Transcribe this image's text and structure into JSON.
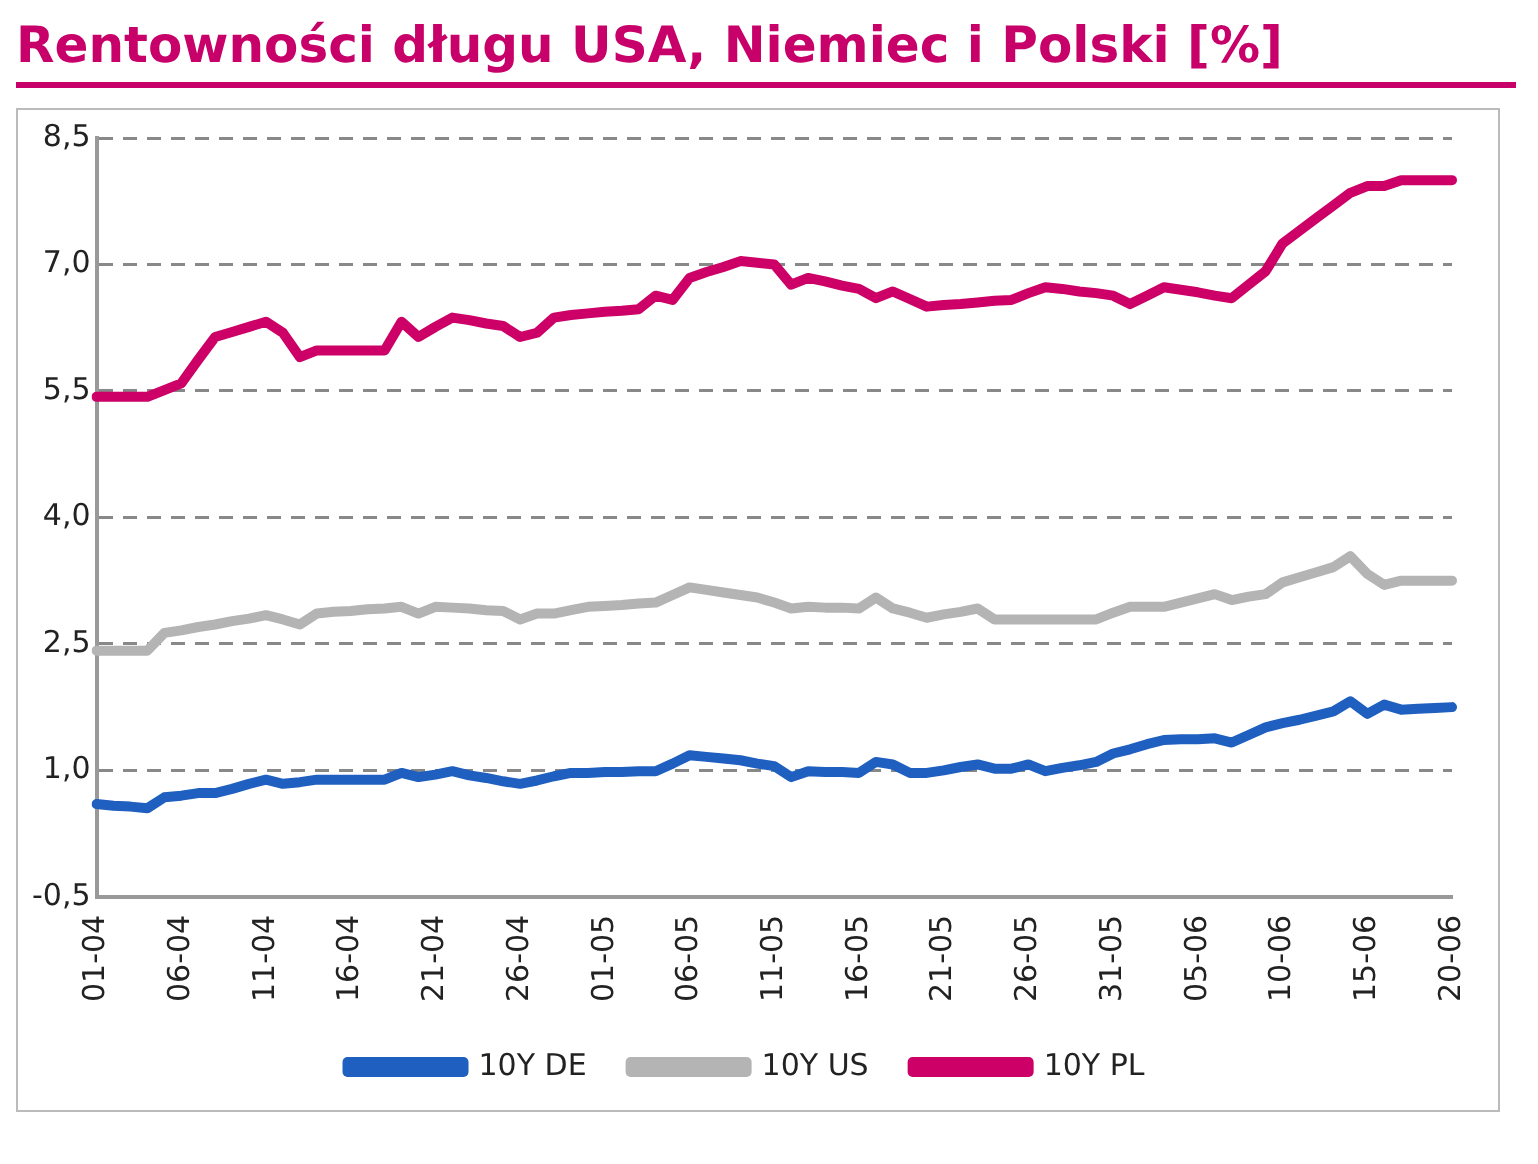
{
  "chart_data": {
    "type": "line",
    "title": "Rentowności długu USA, Niemiec i Polski [%]",
    "categories": [
      "01-04",
      null,
      null,
      null,
      null,
      "06-04",
      null,
      null,
      null,
      null,
      "11-04",
      null,
      null,
      null,
      null,
      "16-04",
      null,
      null,
      null,
      null,
      "21-04",
      null,
      null,
      null,
      null,
      "26-04",
      null,
      null,
      null,
      null,
      "01-05",
      null,
      null,
      null,
      null,
      "06-05",
      null,
      null,
      null,
      null,
      "11-05",
      null,
      null,
      null,
      null,
      "16-05",
      null,
      null,
      null,
      null,
      "21-05",
      null,
      null,
      null,
      null,
      "26-05",
      null,
      null,
      null,
      null,
      "31-05",
      null,
      null,
      null,
      null,
      "05-06",
      null,
      null,
      null,
      null,
      "10-06",
      null,
      null,
      null,
      null,
      "15-06",
      null,
      null,
      null,
      null,
      "20-06"
    ],
    "series": [
      {
        "name": "10Y DE",
        "color": "#1f5fbf",
        "values": [
          0.6,
          0.58,
          0.57,
          0.55,
          0.68,
          0.7,
          0.73,
          0.73,
          0.78,
          0.84,
          0.89,
          0.84,
          0.86,
          0.89,
          0.89,
          0.89,
          0.89,
          0.89,
          0.97,
          0.92,
          0.95,
          0.99,
          0.94,
          0.91,
          0.87,
          0.84,
          0.88,
          0.93,
          0.97,
          0.97,
          0.98,
          0.98,
          0.99,
          0.99,
          1.08,
          1.18,
          1.16,
          1.14,
          1.12,
          1.08,
          1.05,
          0.92,
          0.99,
          0.98,
          0.98,
          0.97,
          1.1,
          1.07,
          0.97,
          0.97,
          1.0,
          1.04,
          1.07,
          1.02,
          1.02,
          1.07,
          0.99,
          1.03,
          1.06,
          1.1,
          1.2,
          1.25,
          1.31,
          1.36,
          1.37,
          1.37,
          1.38,
          1.33,
          1.42,
          1.51,
          1.56,
          1.6,
          1.65,
          1.7,
          1.82,
          1.67,
          1.78,
          1.72,
          1.73,
          1.74,
          1.75
        ]
      },
      {
        "name": "10Y US",
        "color": "#b4b4b4",
        "values": [
          2.42,
          2.42,
          2.42,
          2.42,
          2.63,
          2.66,
          2.7,
          2.73,
          2.77,
          2.8,
          2.84,
          2.79,
          2.73,
          2.86,
          2.88,
          2.89,
          2.91,
          2.92,
          2.94,
          2.86,
          2.94,
          2.93,
          2.92,
          2.9,
          2.89,
          2.79,
          2.86,
          2.86,
          2.9,
          2.94,
          2.95,
          2.96,
          2.98,
          2.99,
          3.08,
          3.17,
          3.14,
          3.11,
          3.08,
          3.05,
          2.99,
          2.92,
          2.94,
          2.93,
          2.93,
          2.92,
          3.05,
          2.92,
          2.87,
          2.81,
          2.85,
          2.88,
          2.92,
          2.79,
          2.79,
          2.79,
          2.79,
          2.79,
          2.79,
          2.79,
          2.87,
          2.94,
          2.94,
          2.94,
          2.99,
          3.04,
          3.09,
          3.02,
          3.06,
          3.09,
          3.23,
          3.29,
          3.35,
          3.41,
          3.54,
          3.33,
          3.2,
          3.25,
          3.25,
          3.25,
          3.25
        ]
      },
      {
        "name": "10Y PL",
        "color": "#cc0066",
        "values": [
          5.43,
          5.43,
          5.43,
          5.43,
          5.51,
          5.59,
          5.87,
          6.14,
          6.2,
          6.26,
          6.32,
          6.19,
          5.9,
          5.98,
          5.98,
          5.98,
          5.98,
          5.98,
          6.32,
          6.14,
          6.26,
          6.37,
          6.34,
          6.3,
          6.27,
          6.14,
          6.19,
          6.37,
          6.4,
          6.42,
          6.44,
          6.45,
          6.47,
          6.63,
          6.58,
          6.84,
          6.91,
          6.97,
          7.04,
          7.02,
          7.0,
          6.76,
          6.84,
          6.8,
          6.75,
          6.71,
          6.6,
          6.68,
          6.59,
          6.5,
          6.52,
          6.53,
          6.55,
          6.57,
          6.58,
          6.66,
          6.73,
          6.71,
          6.68,
          6.66,
          6.63,
          6.53,
          6.63,
          6.73,
          6.7,
          6.67,
          6.63,
          6.6,
          6.76,
          6.92,
          7.25,
          7.4,
          7.55,
          7.7,
          7.85,
          7.93,
          7.93,
          8.0,
          8.0,
          8.0,
          8.0
        ]
      }
    ],
    "ylim": [
      -0.5,
      8.5
    ],
    "yticks": [
      {
        "value": -0.5,
        "label": "-0,5"
      },
      {
        "value": 1,
        "label": "1,0"
      },
      {
        "value": 2.5,
        "label": "2,5"
      },
      {
        "value": 4,
        "label": "4,0"
      },
      {
        "value": 5.5,
        "label": "5,5"
      },
      {
        "value": 7,
        "label": "7,0"
      },
      {
        "value": 8.5,
        "label": "8,5"
      }
    ],
    "grid": "y",
    "legend": "bottom",
    "marker": "none",
    "line_style": "solid"
  }
}
